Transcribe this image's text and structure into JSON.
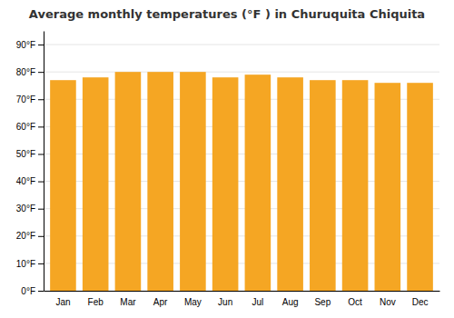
{
  "chart_data": {
    "type": "bar",
    "title": "Average monthly temperatures (°F ) in Churuquita Chiquita",
    "categories": [
      "Jan",
      "Feb",
      "Mar",
      "Apr",
      "May",
      "Jun",
      "Jul",
      "Aug",
      "Sep",
      "Oct",
      "Nov",
      "Dec"
    ],
    "values": [
      77,
      78,
      80,
      80,
      80,
      78,
      79,
      78,
      77,
      77,
      76,
      76
    ],
    "color": "#F5A623",
    "ylim": [
      0,
      95
    ],
    "yticks": [
      {
        "value": 0,
        "label": "0°F"
      },
      {
        "value": 10,
        "label": "10°F"
      },
      {
        "value": 20,
        "label": "20°F"
      },
      {
        "value": 30,
        "label": "30°F"
      },
      {
        "value": 40,
        "label": "40°F"
      },
      {
        "value": 50,
        "label": "50°F"
      },
      {
        "value": 60,
        "label": "60°F"
      },
      {
        "value": 70,
        "label": "70°F"
      },
      {
        "value": 80,
        "label": "80°F"
      },
      {
        "value": 90,
        "label": "90°F"
      }
    ],
    "grid": true
  }
}
